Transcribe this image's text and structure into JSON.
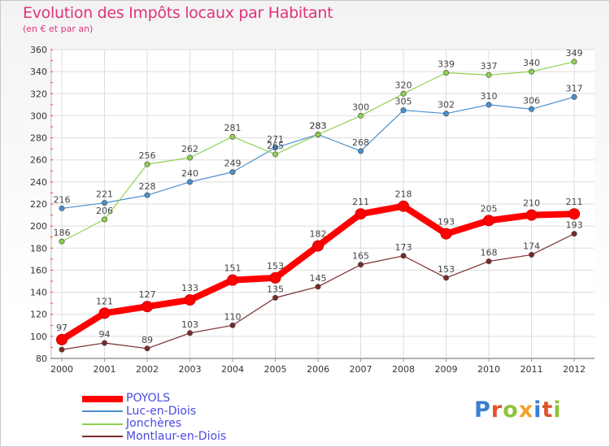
{
  "header": {
    "title": "Evolution des Impôts locaux par Habitant",
    "subtitle": "(en € et par an)"
  },
  "chart_data": {
    "type": "line",
    "title": "Evolution des Impôts locaux par Habitant",
    "subtitle": "(en € et par an)",
    "xlabel": "",
    "ylabel": "",
    "x": [
      "2000",
      "2001",
      "2002",
      "2003",
      "2004",
      "2005",
      "2006",
      "2007",
      "2008",
      "2009",
      "2010",
      "2011",
      "2012"
    ],
    "ylim": [
      80,
      360
    ],
    "yticks": [
      80,
      100,
      120,
      140,
      160,
      180,
      200,
      220,
      240,
      260,
      280,
      300,
      320,
      340,
      360
    ],
    "grid": true,
    "legend_position": "bottom-left",
    "series": [
      {
        "name": "Luc-en-Diois",
        "color": "#4a90d0",
        "values": [
          216,
          221,
          228,
          240,
          249,
          271,
          283,
          268,
          305,
          302,
          310,
          306,
          317
        ]
      },
      {
        "name": "Jonchères",
        "color": "#8fd14f",
        "values": [
          186,
          206,
          256,
          262,
          281,
          265,
          283,
          300,
          320,
          339,
          337,
          340,
          349
        ]
      },
      {
        "name": "Montlaur-en-Diois",
        "color": "#7a2a2a",
        "values": [
          88,
          94,
          89,
          103,
          110,
          135,
          145,
          165,
          173,
          153,
          168,
          174,
          193
        ]
      },
      {
        "name": "POYOLS",
        "color": "#ff0000",
        "values": [
          97,
          121,
          127,
          133,
          151,
          153,
          182,
          211,
          218,
          193,
          205,
          210,
          211
        ]
      }
    ]
  },
  "legend": {
    "items": [
      {
        "label": "POYOLS",
        "color": "#ff0000"
      },
      {
        "label": "Luc-en-Diois",
        "color": "#4a90d0"
      },
      {
        "label": "Jonchères",
        "color": "#8fd14f"
      },
      {
        "label": "Montlaur-en-Diois",
        "color": "#7a2a2a"
      }
    ]
  },
  "logo": {
    "text": "Proxiti",
    "colors": [
      "#3a7fd0",
      "#e2542b",
      "#8fc23a",
      "#f2a12b",
      "#3a7fd0",
      "#e2542b",
      "#8fc23a"
    ]
  }
}
